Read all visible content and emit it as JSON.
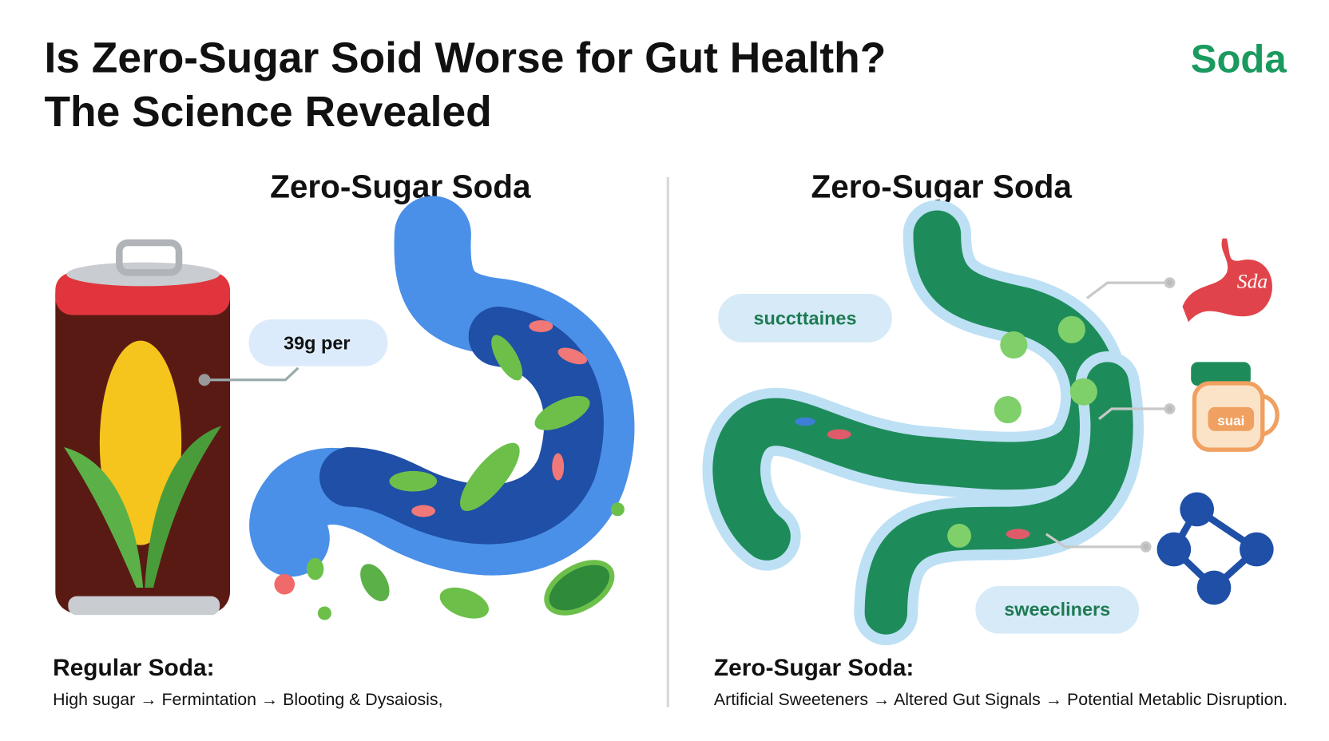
{
  "header": {
    "title_lines": [
      "Is Zero-Sugar Soid Worse for Gut Health?",
      "The Science Revealed"
    ],
    "logo": "Soda"
  },
  "panels": [
    {
      "heading": "Zero-Sugar Soda",
      "callouts": [
        "39g per"
      ],
      "summary_title": "Regular Soda:",
      "summary_text": "High sugar → Fermintation → Blooting & Dysaiosis,"
    },
    {
      "heading": "Zero-Sugar Soda",
      "callouts": [
        "succttaines",
        "sweecliners"
      ],
      "icon_labels": [
        "Sda",
        "suai"
      ],
      "summary_title": "Zero-Sugar Soda:",
      "summary_text": "Artificial Sweeteners → Altered Gut Signals → Potential Metablic Disruption."
    }
  ]
}
